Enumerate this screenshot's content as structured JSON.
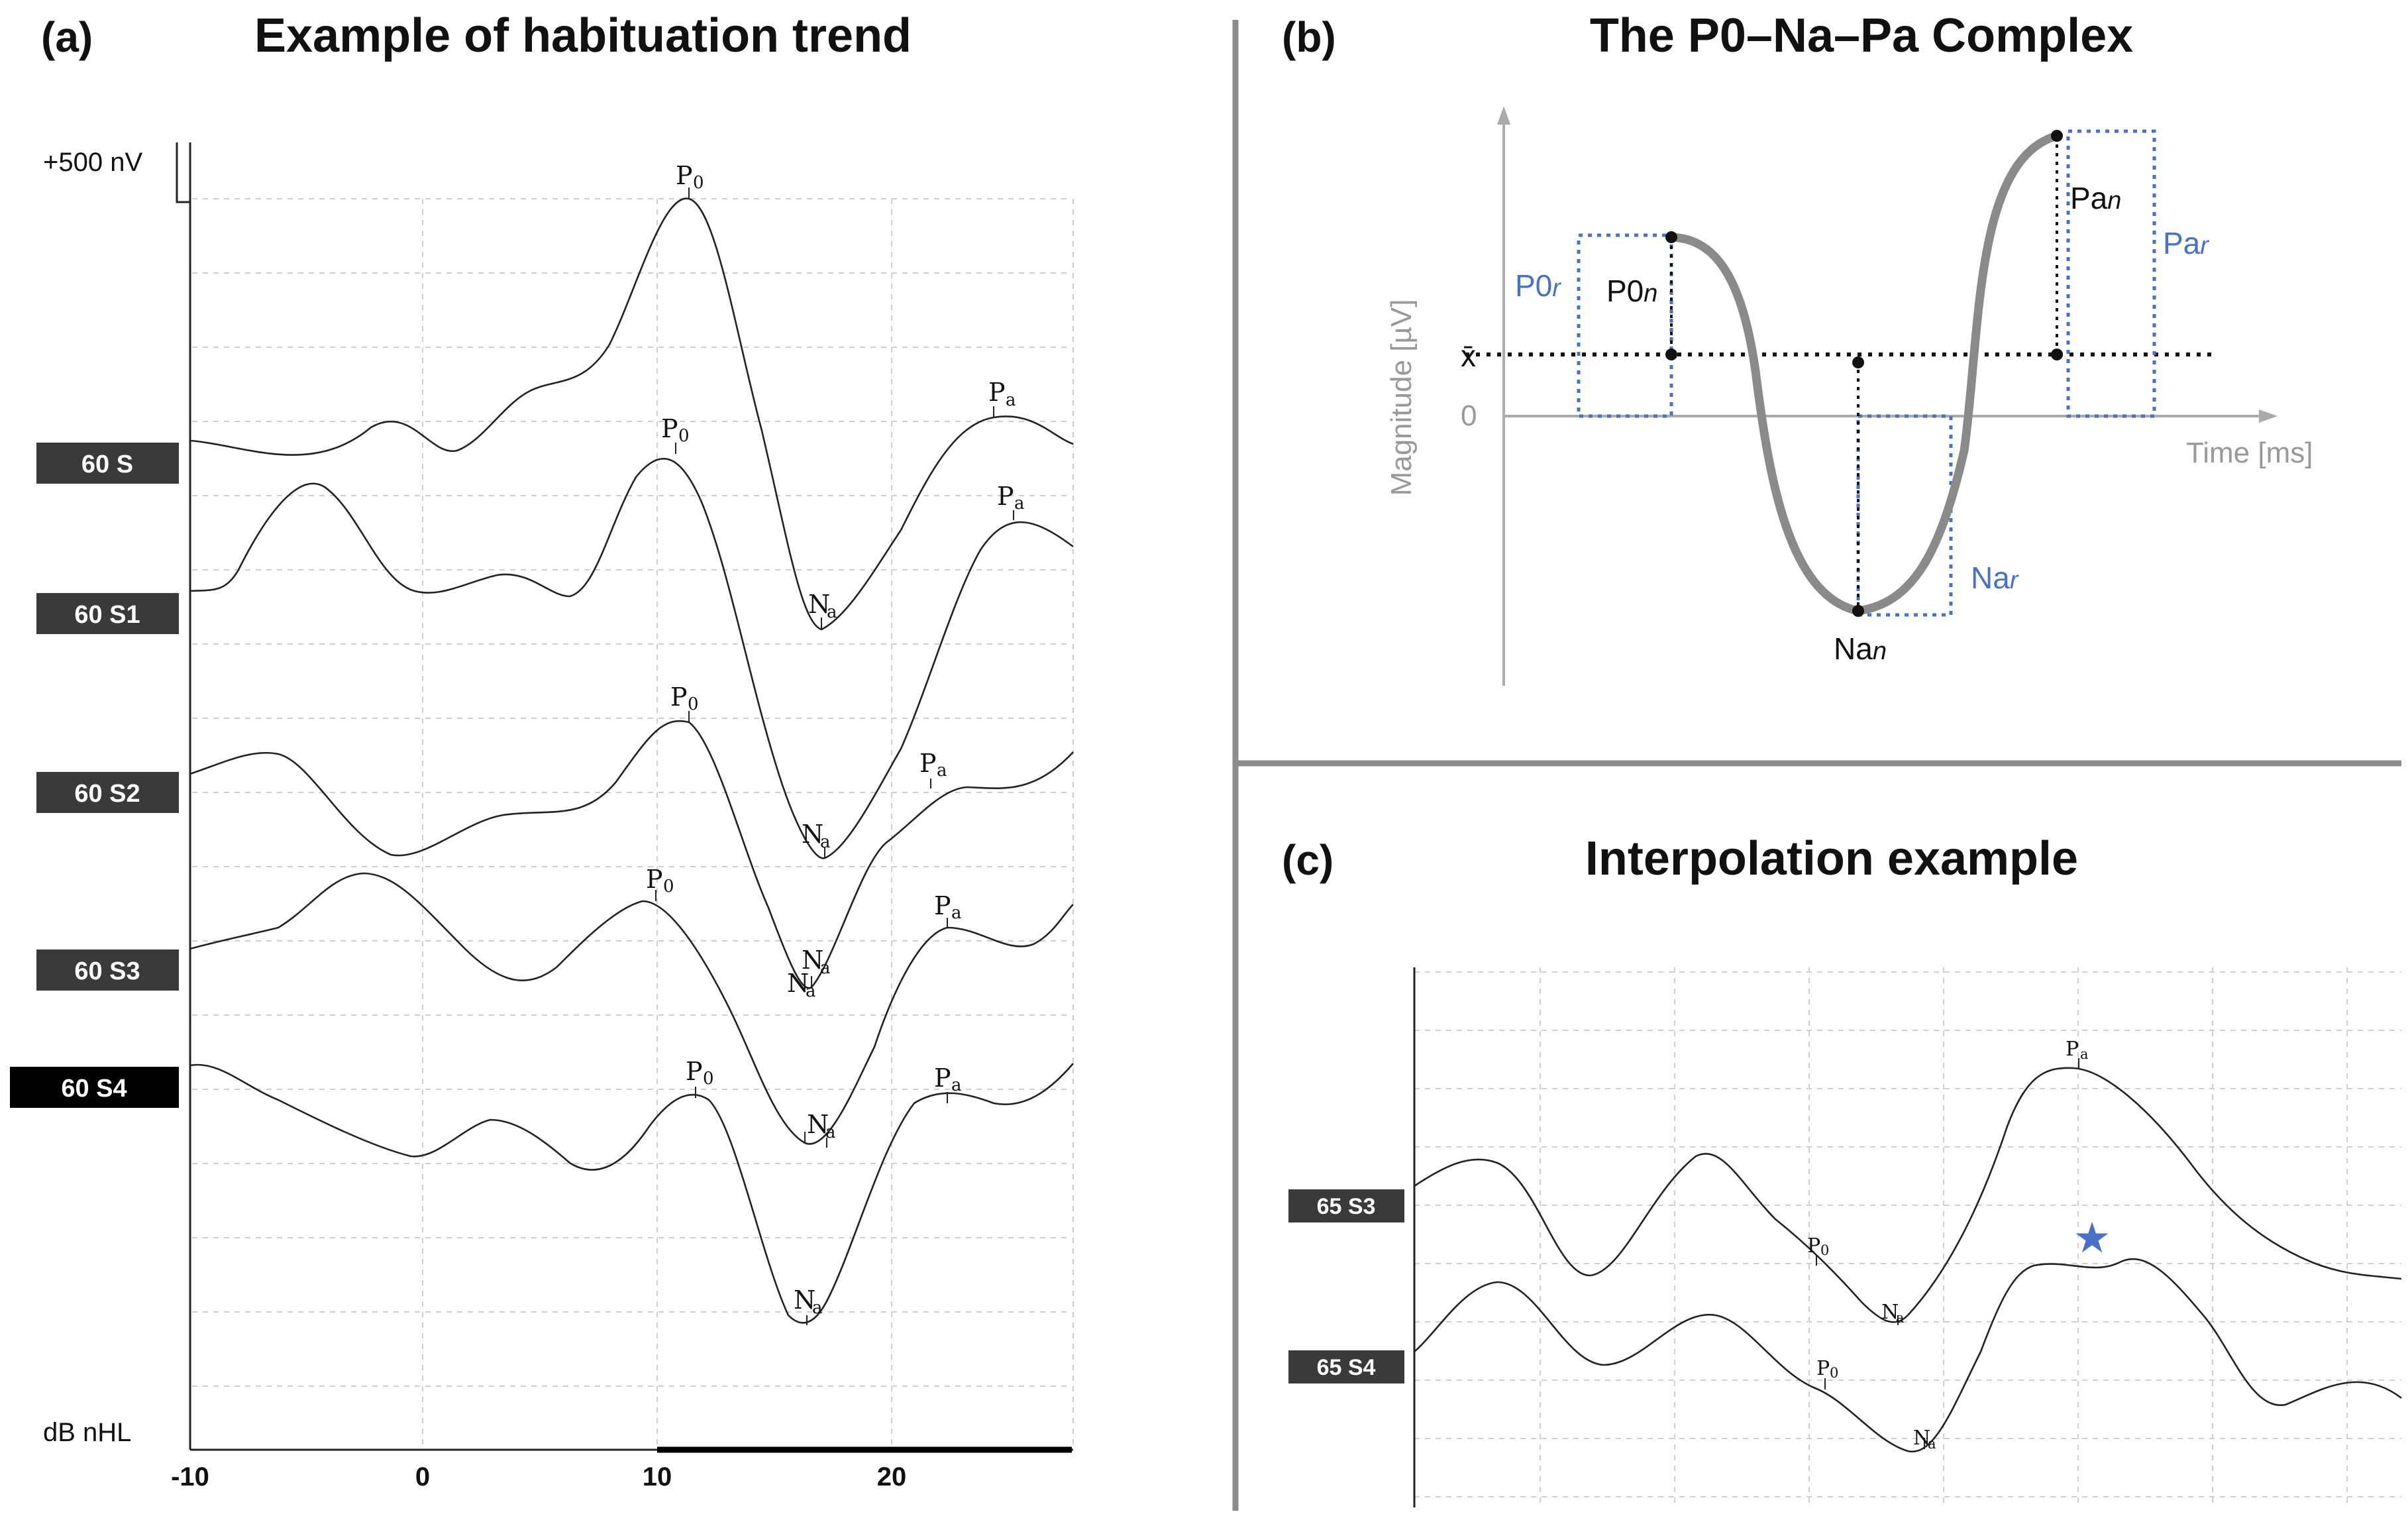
{
  "colors": {
    "accent_blue": "#4a72c4",
    "curve_grey": "#8a8a8a",
    "axis_grey": "#aaaaaa",
    "badge_dark": "#3a3a3a",
    "badge_black": "#000000"
  },
  "panel_a": {
    "letter": "(a)",
    "title": "Example of habituation trend",
    "scale_label": "+500 nV",
    "unit_label": "dB nHL",
    "x_ticks": [
      "-10",
      "0",
      "10",
      "20"
    ],
    "traces": [
      {
        "label": "60 S"
      },
      {
        "label": "60 S1"
      },
      {
        "label": "60 S2"
      },
      {
        "label": "60 S3"
      },
      {
        "label": "60 S4"
      }
    ]
  },
  "panel_b": {
    "letter": "(b)",
    "title": "The P0–Na–Pa Complex",
    "y_axis_label": "Magnitude [µV]",
    "x_axis_label": "Time [ms]",
    "mean_symbol": "x̄",
    "zero_label": "0",
    "labels": {
      "p0n_base": "P0",
      "p0n_sub": "n",
      "p0r_base": "P0",
      "p0r_sub": "r",
      "nan_base": "Na",
      "nan_sub": "n",
      "nar_base": "Na",
      "nar_sub": "r",
      "pan_base": "Pa",
      "pan_sub": "n",
      "par_base": "Pa",
      "par_sub": "r"
    }
  },
  "panel_c": {
    "letter": "(c)",
    "title": "Interpolation example",
    "traces": [
      {
        "label": "65 S3"
      },
      {
        "label": "65 S4"
      }
    ],
    "star": "★"
  },
  "peak_letters": {
    "p": "P",
    "n": "N",
    "zero": "0",
    "a": "a"
  }
}
